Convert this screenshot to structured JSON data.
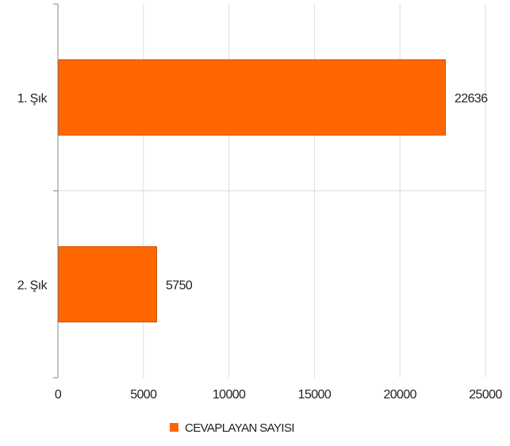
{
  "chart_data": {
    "type": "bar",
    "orientation": "horizontal",
    "categories": [
      "1. Şık",
      "2. Şık"
    ],
    "series": [
      {
        "name": "CEVAPLAYAN SAYISI",
        "values": [
          22636,
          5750
        ],
        "color": "#ff6600"
      }
    ],
    "data_labels": [
      "22636",
      "5750"
    ],
    "xlim": [
      0,
      25000
    ],
    "x_ticks": [
      0,
      5000,
      10000,
      15000,
      20000,
      25000
    ],
    "x_tick_labels": [
      "0",
      "5000",
      "10000",
      "15000",
      "20000",
      "25000"
    ],
    "grid": true,
    "legend_position": "bottom-center",
    "colors": {
      "bar_fill": "#ff6600",
      "bar_stroke": "#c84e00",
      "grid": "#dddddd",
      "axis": "#888888"
    }
  }
}
